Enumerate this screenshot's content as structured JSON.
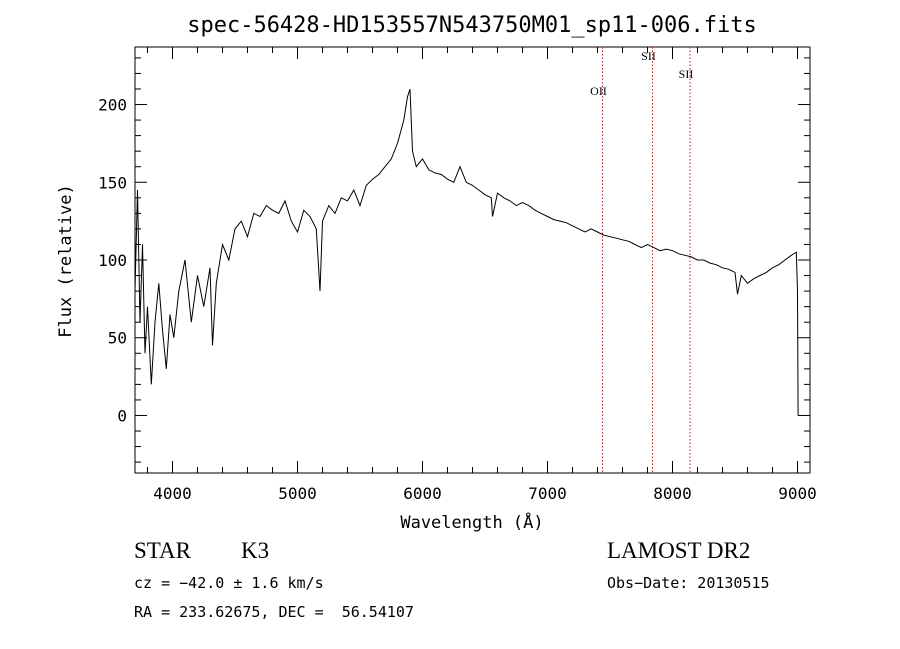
{
  "chart_data": {
    "type": "line",
    "title": "spec-56428-HD153557N543750M01_sp11-006.fits",
    "xlabel": "Wavelength (Å)",
    "ylabel": "Flux (relative)",
    "xlim": [
      3700,
      9100
    ],
    "ylim": [
      -37,
      237
    ],
    "x_ticks": [
      4000,
      5000,
      6000,
      7000,
      8000,
      9000
    ],
    "y_ticks": [
      0,
      50,
      100,
      150,
      200
    ],
    "grid": false,
    "series": [
      {
        "x": [
          3700,
          3720,
          3740,
          3760,
          3780,
          3800,
          3830,
          3860,
          3890,
          3920,
          3950,
          3980,
          4010,
          4050,
          4100,
          4150,
          4200,
          4250,
          4300,
          4320,
          4350,
          4400,
          4450,
          4500,
          4550,
          4600,
          4650,
          4700,
          4750,
          4800,
          4850,
          4900,
          4950,
          5000,
          5050,
          5100,
          5150,
          5180,
          5200,
          5250,
          5300,
          5350,
          5400,
          5450,
          5500,
          5550,
          5600,
          5650,
          5700,
          5750,
          5800,
          5850,
          5880,
          5900,
          5920,
          5950,
          6000,
          6050,
          6100,
          6150,
          6200,
          6250,
          6300,
          6350,
          6400,
          6450,
          6500,
          6550,
          6560,
          6600,
          6650,
          6700,
          6750,
          6800,
          6850,
          6900,
          6950,
          7000,
          7050,
          7100,
          7150,
          7200,
          7250,
          7300,
          7350,
          7400,
          7450,
          7500,
          7550,
          7600,
          7650,
          7700,
          7750,
          7800,
          7850,
          7900,
          7950,
          8000,
          8050,
          8100,
          8150,
          8200,
          8250,
          8300,
          8350,
          8400,
          8450,
          8500,
          8520,
          8550,
          8600,
          8650,
          8700,
          8750,
          8800,
          8850,
          8900,
          8950,
          8990,
          9000,
          9005
        ],
        "y": [
          80,
          145,
          60,
          110,
          40,
          70,
          20,
          60,
          85,
          55,
          30,
          65,
          50,
          80,
          100,
          60,
          90,
          70,
          95,
          45,
          85,
          110,
          100,
          120,
          125,
          115,
          130,
          128,
          135,
          132,
          130,
          138,
          125,
          118,
          132,
          128,
          120,
          80,
          125,
          135,
          130,
          140,
          138,
          145,
          135,
          148,
          152,
          155,
          160,
          165,
          175,
          190,
          205,
          210,
          170,
          160,
          165,
          158,
          156,
          155,
          152,
          150,
          160,
          150,
          148,
          145,
          142,
          140,
          128,
          143,
          140,
          138,
          135,
          137,
          135,
          132,
          130,
          128,
          126,
          125,
          124,
          122,
          120,
          118,
          120,
          118,
          116,
          115,
          114,
          113,
          112,
          110,
          108,
          110,
          108,
          106,
          107,
          106,
          104,
          103,
          102,
          100,
          100,
          98,
          97,
          95,
          94,
          92,
          78,
          90,
          85,
          88,
          90,
          92,
          95,
          97,
          100,
          103,
          105,
          80,
          0
        ]
      }
    ],
    "line_markers": [
      {
        "label": "OII",
        "wavelength": 7440
      },
      {
        "label": "SII",
        "wavelength": 7840
      },
      {
        "label": "SII",
        "wavelength": 8140
      }
    ],
    "colors": {
      "spectrum": "#000000",
      "line_markers": "#b22222"
    }
  },
  "footer": {
    "object_class": "STAR",
    "subclass": "K3",
    "survey": "LAMOST DR2",
    "cz": "cz = −42.0 ± 1.6 km/s",
    "obs_date": "Obs−Date: 20130515",
    "coords": "RA = 233.62675, DEC =  56.54107"
  }
}
